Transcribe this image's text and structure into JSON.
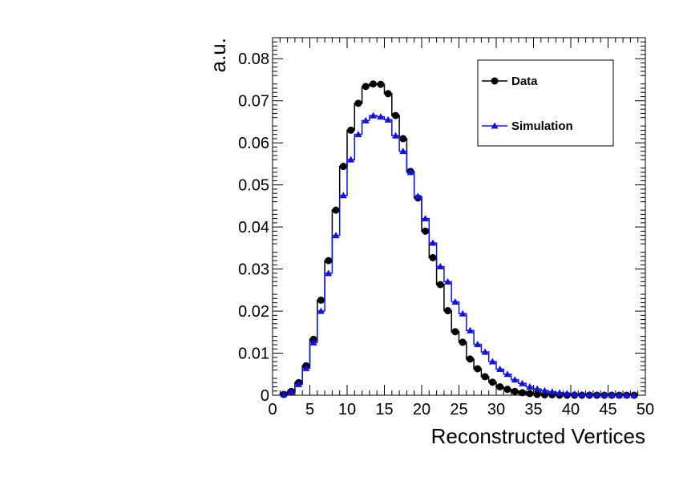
{
  "chart_data": {
    "type": "line",
    "title": "",
    "xlabel": "Reconstructed Vertices",
    "ylabel": "a.u.",
    "xlim": [
      0,
      50
    ],
    "ylim": [
      0,
      0.085
    ],
    "x_ticks": [
      0,
      5,
      10,
      15,
      20,
      25,
      30,
      35,
      40,
      45,
      50
    ],
    "x_tick_labels": [
      "0",
      "5",
      "10",
      "15",
      "20",
      "25",
      "30",
      "35",
      "40",
      "45",
      "50"
    ],
    "y_ticks": [
      0,
      0.01,
      0.02,
      0.03,
      0.04,
      0.05,
      0.06,
      0.07,
      0.08
    ],
    "y_tick_labels": [
      "0",
      "0.01",
      "0.02",
      "0.03",
      "0.04",
      "0.05",
      "0.06",
      "0.07",
      "0.08"
    ],
    "legend_position": "top-right",
    "x": [
      1.5,
      2.5,
      3.5,
      4.5,
      5.5,
      6.5,
      7.5,
      8.5,
      9.5,
      10.5,
      11.5,
      12.5,
      13.5,
      14.5,
      15.5,
      16.5,
      17.5,
      18.5,
      19.5,
      20.5,
      21.5,
      22.5,
      23.5,
      24.5,
      25.5,
      26.5,
      27.5,
      28.5,
      29.5,
      30.5,
      31.5,
      32.5,
      33.5,
      34.5,
      35.5,
      36.5,
      37.5,
      38.5,
      39.5,
      40.5,
      41.5,
      42.5,
      43.5,
      44.5,
      45.5,
      46.5,
      47.5,
      48.5
    ],
    "series": [
      {
        "name": "Data",
        "color": "#000000",
        "marker": "circle",
        "values": [
          0.0002,
          0.0009,
          0.003,
          0.007,
          0.0133,
          0.0226,
          0.032,
          0.044,
          0.0544,
          0.063,
          0.0694,
          0.0734,
          0.074,
          0.0739,
          0.0717,
          0.0665,
          0.061,
          0.0532,
          0.0469,
          0.039,
          0.0327,
          0.0263,
          0.0201,
          0.0151,
          0.0126,
          0.0086,
          0.0063,
          0.0044,
          0.0031,
          0.002,
          0.0014,
          0.0009,
          0.0006,
          0.0004,
          0.0002,
          0.0001,
          0.0001,
          0.0,
          0.0,
          0.0,
          0.0,
          0.0,
          0.0,
          0.0,
          0.0,
          0.0,
          0.0,
          0.0
        ]
      },
      {
        "name": "Simulation",
        "color": "#1010e6",
        "marker": "triangle",
        "values": [
          0.0002,
          0.0008,
          0.0026,
          0.0064,
          0.0125,
          0.02,
          0.029,
          0.038,
          0.0475,
          0.056,
          0.062,
          0.0653,
          0.0665,
          0.0662,
          0.0655,
          0.0617,
          0.058,
          0.053,
          0.0473,
          0.042,
          0.0362,
          0.0306,
          0.027,
          0.0222,
          0.0194,
          0.0154,
          0.0121,
          0.0103,
          0.008,
          0.0062,
          0.005,
          0.0037,
          0.0028,
          0.002,
          0.0015,
          0.0011,
          0.0008,
          0.0006,
          0.0004,
          0.0003,
          0.0002,
          0.0002,
          0.0001,
          0.0001,
          0.0001,
          0.0,
          0.0,
          0.0
        ]
      }
    ]
  }
}
